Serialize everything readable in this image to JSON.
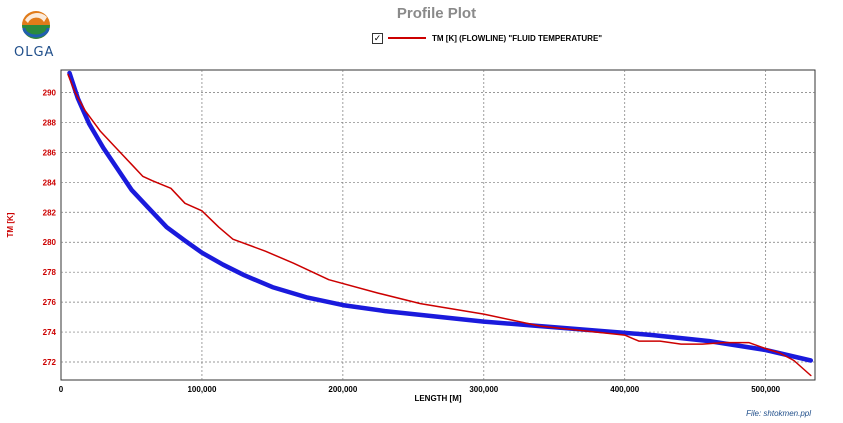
{
  "logo": {
    "text": "OLGA"
  },
  "colors": {
    "measured": "#cc0000",
    "simulated": "#1a1adc",
    "axis_text": "#cc0000",
    "title": "#8a8a8a"
  },
  "legend": {
    "checked": "✓",
    "label": "TM [K] (FLOWLINE) \"FLUID TEMPERATURE\""
  },
  "footer": "File: shtokmen.ppl",
  "chart_data": {
    "type": "line",
    "title": "Profile Plot",
    "xlabel": "LENGTH [M]",
    "ylabel": "TM [K]",
    "xlim": [
      0,
      535000
    ],
    "ylim": [
      270.8,
      291.5
    ],
    "grid": true,
    "legend_position": "top",
    "xticks": [
      0,
      100000,
      200000,
      300000,
      400000,
      500000
    ],
    "xtick_labels": [
      "0",
      "100,000",
      "200,000",
      "300,000",
      "400,000",
      "500,000"
    ],
    "yticks": [
      272,
      274,
      276,
      278,
      280,
      282,
      284,
      286,
      288,
      290
    ],
    "ytick_labels": [
      "272",
      "274",
      "276",
      "278",
      "280",
      "282",
      "284",
      "286",
      "288",
      "290"
    ],
    "series": [
      {
        "name": "TM [K] (FLOWLINE) \"FLUID TEMPERATURE\"",
        "style": "thin red",
        "x": [
          5000,
          10000,
          17000,
          28000,
          40000,
          50000,
          58000,
          65000,
          78000,
          88000,
          100000,
          112000,
          122000,
          145000,
          165000,
          190000,
          225000,
          255000,
          300000,
          340000,
          380000,
          400000,
          410000,
          425000,
          440000,
          455000,
          470000,
          488000,
          500000,
          510000,
          520000,
          532000
        ],
        "values": [
          291.2,
          290.0,
          288.8,
          287.4,
          286.2,
          285.2,
          284.4,
          284.1,
          283.6,
          282.6,
          282.1,
          281.0,
          280.2,
          279.4,
          278.6,
          277.5,
          276.6,
          275.9,
          275.2,
          274.4,
          274.0,
          273.8,
          273.4,
          273.4,
          273.2,
          273.2,
          273.3,
          273.3,
          272.9,
          272.6,
          272.1,
          271.1
        ]
      },
      {
        "name": "",
        "style": "thick blue",
        "x": [
          6000,
          12000,
          20000,
          30000,
          40000,
          50000,
          62000,
          75000,
          88000,
          100000,
          115000,
          130000,
          150000,
          175000,
          200000,
          230000,
          260000,
          300000,
          340000,
          380000,
          420000,
          460000,
          500000,
          532000
        ],
        "values": [
          291.3,
          289.6,
          287.9,
          286.3,
          284.9,
          283.5,
          282.3,
          281.0,
          280.1,
          279.3,
          278.5,
          277.8,
          277.0,
          276.3,
          275.8,
          275.4,
          275.1,
          274.7,
          274.4,
          274.1,
          273.8,
          273.4,
          272.8,
          272.1
        ]
      }
    ]
  }
}
